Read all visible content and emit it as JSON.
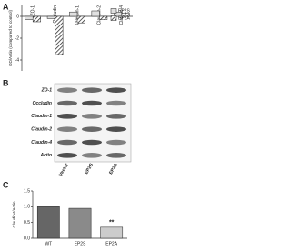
{
  "panel_labels": [
    "A",
    "B",
    "C"
  ],
  "chart_data": [
    {
      "type": "bar",
      "y_label": "OD/Actin (compared to control)",
      "categories": [
        "ZO-1",
        "Occludin",
        "Claudin-1",
        "Claudin-2",
        "Claudin-4"
      ],
      "series": [
        {
          "name": "EP2S",
          "color": "#e0e0e0",
          "values": [
            -0.3,
            -0.2,
            0.4,
            0.5,
            0.4
          ]
        },
        {
          "name": "EP2A",
          "color": "#555555",
          "values": [
            -0.5,
            -3.5,
            -0.6,
            -0.3,
            0.3
          ]
        }
      ],
      "ylim": [
        -5,
        1
      ],
      "yticks": [
        -4,
        -2,
        0
      ],
      "legend": "upper-right"
    },
    {
      "type": "bar",
      "y_label": "Claudin4/Actin",
      "categories": [
        "WT",
        "EP2S",
        "EP2A"
      ],
      "values": [
        1.0,
        0.95,
        0.35
      ],
      "colors": [
        "#666666",
        "#8a8a8a",
        "#cccccc"
      ],
      "ylim": [
        0,
        1.5
      ],
      "yticks": [
        {
          "value": 0,
          "label": "0.0"
        },
        {
          "value": 0.5,
          "label": "0.5"
        },
        {
          "value": 1,
          "label": "1.0"
        },
        {
          "value": 1.5,
          "label": "1.5"
        }
      ],
      "annotation": "**"
    }
  ],
  "blot": {
    "rows": [
      "ZO-1",
      "Occludin",
      "Claudin-1",
      "Claudin-2",
      "Claudin-4",
      "Actin"
    ],
    "columns": [
      "Vector",
      "EP2S",
      "EP2A"
    ]
  }
}
